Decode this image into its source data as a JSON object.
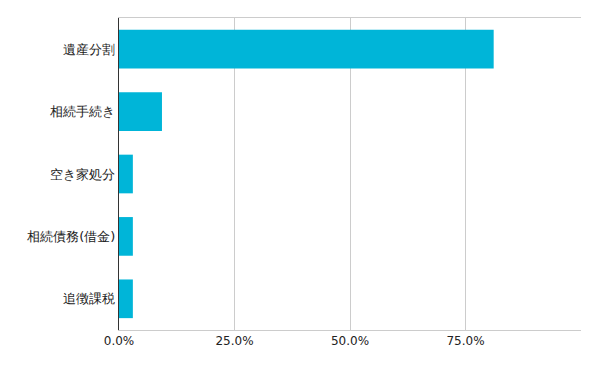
{
  "chart_data": {
    "type": "bar",
    "orientation": "horizontal",
    "categories": [
      "遺産分割",
      "相続手続き",
      "空き家処分",
      "相続債務(借金)",
      "追徴課税"
    ],
    "values": [
      81.1,
      9.3,
      3.0,
      3.0,
      3.0
    ],
    "color": "#00b5d8",
    "xlim": [
      0,
      100
    ],
    "xticks": [
      {
        "value": 0,
        "label": "0.0%"
      },
      {
        "value": 25,
        "label": "25.0%"
      },
      {
        "value": 50,
        "label": "50.0%"
      },
      {
        "value": 75,
        "label": "75.0%"
      }
    ],
    "grid": true
  }
}
